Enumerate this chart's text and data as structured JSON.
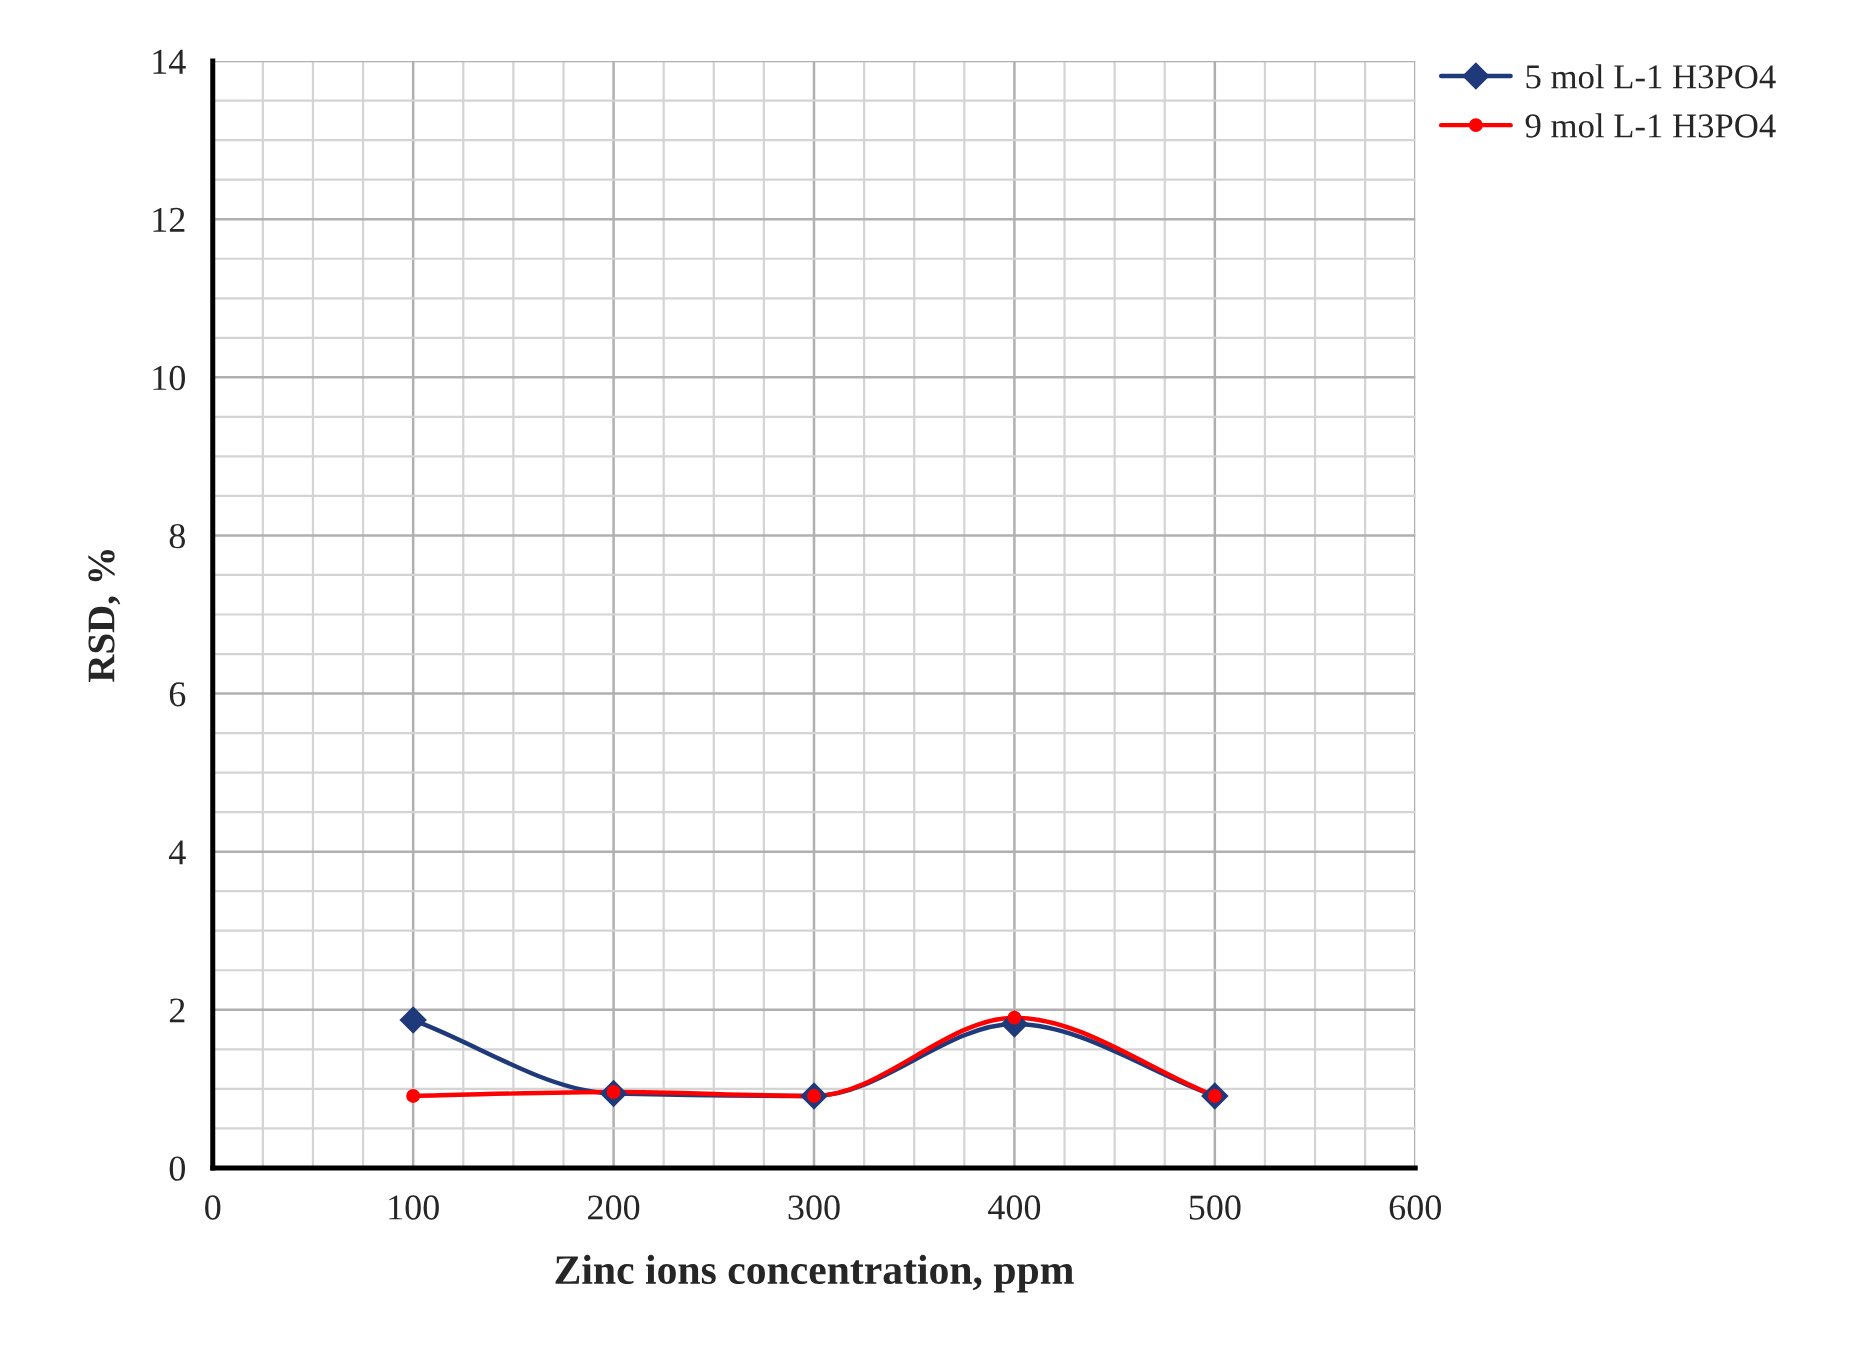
{
  "chart_data": {
    "type": "line",
    "xlabel": "Zinc ions concentration, ppm",
    "ylabel": "RSD, %",
    "x": [
      100,
      200,
      300,
      400,
      500
    ],
    "series": [
      {
        "name": "5 mol L-1 H3PO4",
        "color": "#1f3a7a",
        "marker": "diamond",
        "values": [
          1.87,
          0.94,
          0.91,
          1.82,
          0.91
        ]
      },
      {
        "name": "9 mol L-1 H3PO4",
        "color": "#ff0000",
        "marker": "circle",
        "values": [
          0.91,
          0.96,
          0.91,
          1.9,
          0.91
        ]
      }
    ],
    "xlim": [
      0,
      600
    ],
    "xticks": [
      0,
      100,
      200,
      300,
      400,
      500,
      600
    ],
    "ylim": [
      0,
      14
    ],
    "yticks": [
      0,
      2,
      4,
      6,
      8,
      10,
      12,
      14
    ],
    "grid": true,
    "legend": "top right",
    "line_style": "solid"
  }
}
